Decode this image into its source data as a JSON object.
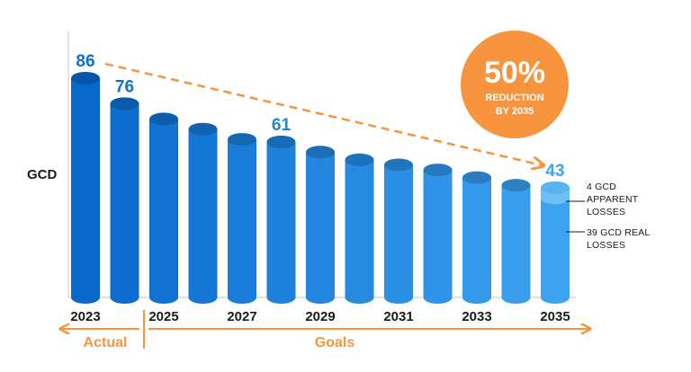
{
  "chart_data": {
    "type": "bar",
    "ylabel": "GCD",
    "categories": [
      "2023",
      "2024",
      "2025",
      "2026",
      "2027",
      "2028",
      "2029",
      "2030",
      "2031",
      "2032",
      "2033",
      "2034",
      "2035"
    ],
    "tick_labels": [
      "2023",
      "2025",
      "2027",
      "2029",
      "2031",
      "2033",
      "2035"
    ],
    "values": [
      86,
      76,
      70,
      66,
      62,
      61,
      57,
      54,
      52,
      50,
      47,
      44,
      43
    ],
    "value_labels": [
      {
        "category": "2023",
        "text": "86"
      },
      {
        "category": "2024",
        "text": "76"
      },
      {
        "category": "2028",
        "text": "61"
      },
      {
        "category": "2035",
        "text": "43"
      }
    ],
    "stacked_final": {
      "category": "2035",
      "apparent_losses": 4,
      "real_losses": 39
    },
    "annotations": {
      "apparent": [
        "4 GCD",
        "APPARENT",
        "LOSSES"
      ],
      "real": [
        "39 GCD REAL",
        "LOSSES"
      ]
    },
    "badge": {
      "percent": "50%",
      "line1": "REDUCTION",
      "line2": "BY 2035"
    },
    "periods": {
      "actual": "Actual",
      "goals": "Goals"
    },
    "colors": {
      "bar_start": "#0868cc",
      "bar_end": "#3ca3f0",
      "apparent_cap": "#6cc0f5",
      "value_label_dark": "#0b6fd0",
      "value_label_light": "#3ea4ef",
      "trend_arrow": "#f7943d",
      "badge": "#f7943d",
      "period_labels": "#f7943d"
    },
    "trend_line": "dashed arrow from 2023 to 2035",
    "grid": false
  }
}
